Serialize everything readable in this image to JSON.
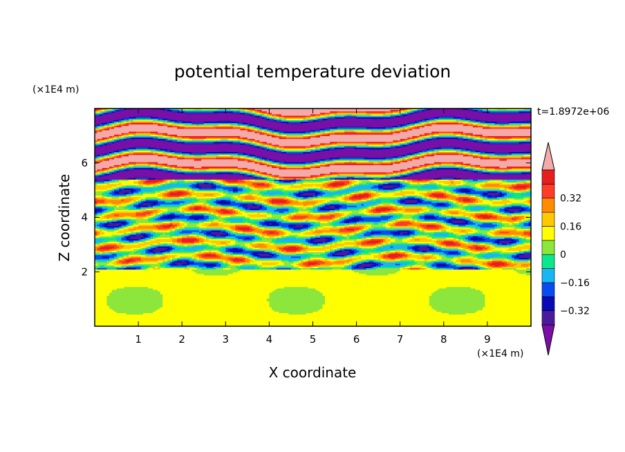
{
  "chart_data": {
    "type": "heatmap",
    "title": "potential temperature deviation",
    "xlabel": "X coordinate",
    "ylabel": "Z coordinate",
    "x_unit": "(×1E4 m)",
    "y_unit": "(×1E4 m)",
    "time_label": "t=1.8972e+06",
    "xlim": [
      0,
      10
    ],
    "ylim": [
      0,
      8
    ],
    "x_ticks": [
      "1",
      "2",
      "3",
      "4",
      "5",
      "6",
      "7",
      "8",
      "9"
    ],
    "y_ticks": [
      "2",
      "4",
      "6"
    ],
    "colorbar": {
      "levels": [
        -0.48,
        -0.4,
        -0.32,
        -0.24,
        -0.16,
        -0.08,
        0,
        0.08,
        0.16,
        0.24,
        0.32,
        0.4,
        0.48
      ],
      "labels": [
        "0.32",
        "0.16",
        "0",
        "−0.16",
        "−0.32"
      ],
      "colors": [
        "#7a0fa8",
        "#4b1a9c",
        "#0a0ab4",
        "#0a4bf0",
        "#18b6f5",
        "#0ce68c",
        "#8ce63c",
        "#ffff00",
        "#ffc800",
        "#ff8c00",
        "#ff3c28",
        "#e61e1e",
        "#f5aaaa"
      ],
      "extend": "both"
    },
    "regions": [
      {
        "description_z_range": [
          0,
          2.1
        ],
        "dominant_level": 0.04
      },
      {
        "description_z_range": [
          2.1,
          5.5
        ],
        "dominant_level": "mixed"
      },
      {
        "description_z_range": [
          5.5,
          8
        ],
        "dominant_level": "banded"
      }
    ]
  }
}
